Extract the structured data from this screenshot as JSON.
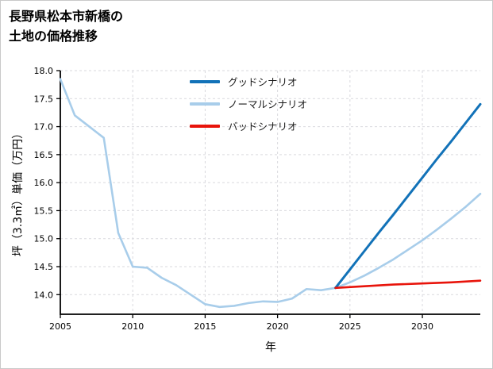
{
  "page": {
    "title_line1": "長野県松本市新橋の",
    "title_line2": "土地の価格推移"
  },
  "chart_data": {
    "type": "line",
    "title": "長野県松本市新橋の土地の価格推移",
    "xlabel": "年",
    "ylabel": "坪（3.3㎡）単価（万円）",
    "xlim": [
      2005,
      2034
    ],
    "ylim": [
      13.65,
      18.0
    ],
    "xticks": [
      2005,
      2010,
      2015,
      2020,
      2025,
      2030
    ],
    "yticks": [
      14.0,
      14.5,
      15.0,
      15.5,
      16.0,
      16.5,
      17.0,
      17.5,
      18.0
    ],
    "grid": true,
    "legend_position": "upper-center",
    "series": [
      {
        "name": "グッドシナリオ",
        "color": "#1272b8",
        "width": 3,
        "zorder": 2,
        "x": [
          2024,
          2025,
          2026,
          2027,
          2028,
          2029,
          2030,
          2031,
          2032,
          2033,
          2034
        ],
        "y": [
          14.12,
          14.45,
          14.78,
          15.11,
          15.43,
          15.76,
          16.09,
          16.42,
          16.74,
          17.07,
          17.4
        ]
      },
      {
        "name": "ノーマルシナリオ",
        "color": "#a8cdea",
        "width": 2.6,
        "zorder": 1,
        "x": [
          2005,
          2006,
          2007,
          2008,
          2009,
          2010,
          2011,
          2012,
          2013,
          2014,
          2015,
          2016,
          2017,
          2018,
          2019,
          2020,
          2021,
          2022,
          2023,
          2024,
          2025,
          2026,
          2027,
          2028,
          2029,
          2030,
          2031,
          2032,
          2033,
          2034
        ],
        "y": [
          17.85,
          17.2,
          17.0,
          16.8,
          15.1,
          14.5,
          14.48,
          14.3,
          14.17,
          14.0,
          13.83,
          13.78,
          13.8,
          13.85,
          13.88,
          13.87,
          13.93,
          14.1,
          14.08,
          14.12,
          14.22,
          14.34,
          14.48,
          14.63,
          14.8,
          14.97,
          15.16,
          15.36,
          15.57,
          15.8
        ]
      },
      {
        "name": "バッドシナリオ",
        "color": "#e8140b",
        "width": 2.6,
        "zorder": 3,
        "x": [
          2024,
          2026,
          2028,
          2030,
          2032,
          2034
        ],
        "y": [
          14.12,
          14.15,
          14.18,
          14.2,
          14.22,
          14.25
        ]
      }
    ]
  }
}
